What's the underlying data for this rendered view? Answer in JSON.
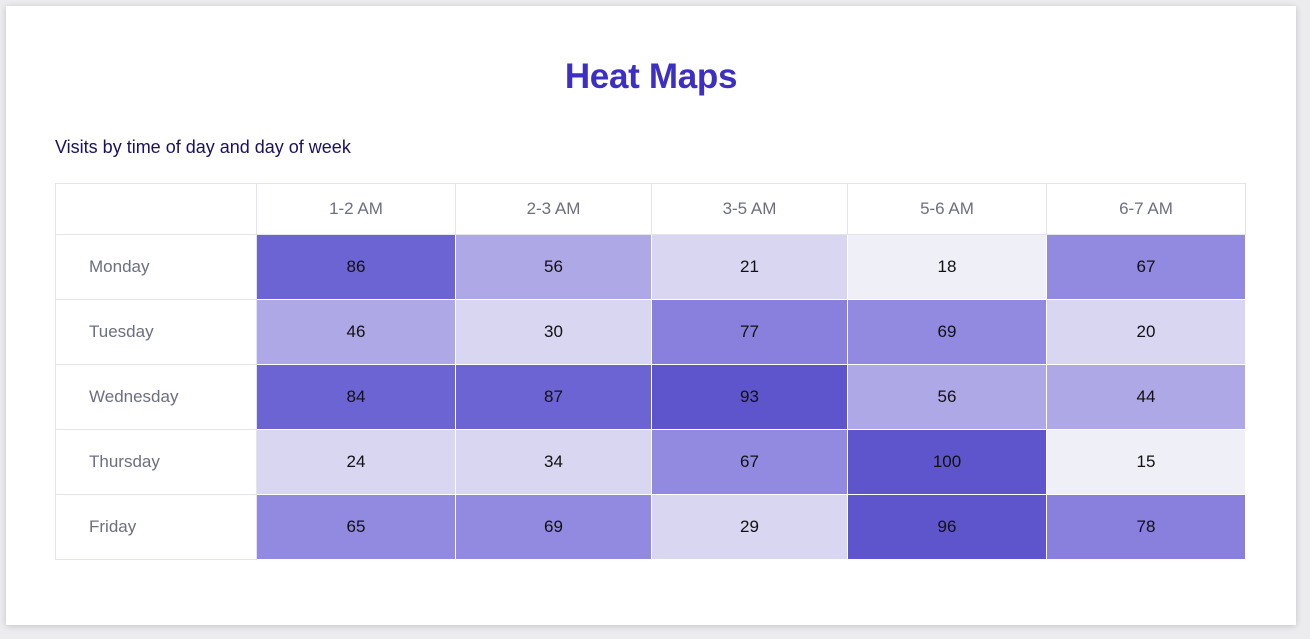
{
  "page": {
    "title": "Heat Maps",
    "subtitle": "Visits by time of day and day of week"
  },
  "colors": {
    "title": "#3b2fc4",
    "scale": [
      "#efeff8",
      "#d8d6f1",
      "#aea8e6",
      "#928ae0",
      "#8880dc",
      "#6c64d3",
      "#5e55cd"
    ]
  },
  "chart_data": {
    "type": "heatmap",
    "title": "Visits by time of day and day of week",
    "x": [
      "1-2 AM",
      "2-3 AM",
      "3-5 AM",
      "5-6 AM",
      "6-7 AM"
    ],
    "y": [
      "Monday",
      "Tuesday",
      "Wednesday",
      "Thursday",
      "Friday"
    ],
    "values": [
      [
        86,
        56,
        21,
        18,
        67
      ],
      [
        46,
        30,
        77,
        69,
        20
      ],
      [
        84,
        87,
        93,
        56,
        44
      ],
      [
        24,
        34,
        67,
        100,
        15
      ],
      [
        65,
        69,
        29,
        96,
        78
      ]
    ],
    "range": [
      0,
      100
    ]
  }
}
